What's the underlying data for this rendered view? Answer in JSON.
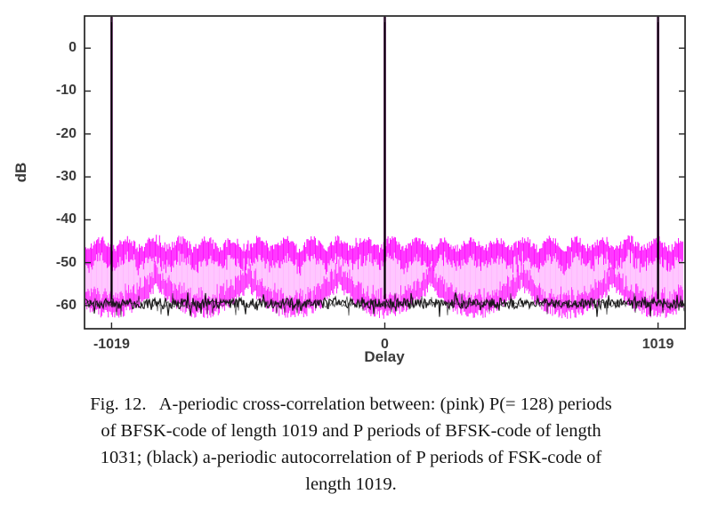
{
  "figure": {
    "caption": {
      "lines": [
        "Fig. 12.   A-periodic cross-correlation between: (pink) P(= 128) periods",
        "of BFSK-code of length 1019 and P periods of BFSK-code of length",
        "1031; (black) a-periodic autocorrelation of P periods of FSK-code of",
        "length 1019."
      ]
    }
  },
  "chart_data": {
    "type": "line",
    "title": "",
    "xlabel": "Delay",
    "ylabel": "dB",
    "xlim": [
      -1120,
      1120
    ],
    "ylim": [
      -65.4,
      7.5
    ],
    "x_ticks": [
      -1019,
      0,
      1019
    ],
    "y_ticks": [
      0,
      -10,
      -20,
      -30,
      -40,
      -50,
      -60
    ],
    "grid": false,
    "legend_position": "none",
    "series": [
      {
        "name": "A-periodic cross-correlation of P(=128) periods of BFSK-code length 1019 with P periods of BFSK-code length 1031",
        "color": "#ff00ff",
        "kind": "dense noisy vertical comb band",
        "band_top_db": -45,
        "band_bottom_db": -63,
        "envelope_scallop_period": 340
      },
      {
        "name": "A-periodic autocorrelation of P periods of FSK-code length 1019",
        "color": "#0a0a0a",
        "kind": "noise floor with periodic peaks",
        "floor_mean_db": -59.5,
        "floor_spread_db": 2.5,
        "peak_positions": [
          -1019,
          0,
          1019
        ],
        "peak_db_note": "peaks clipped at top of axes view limit"
      }
    ]
  }
}
